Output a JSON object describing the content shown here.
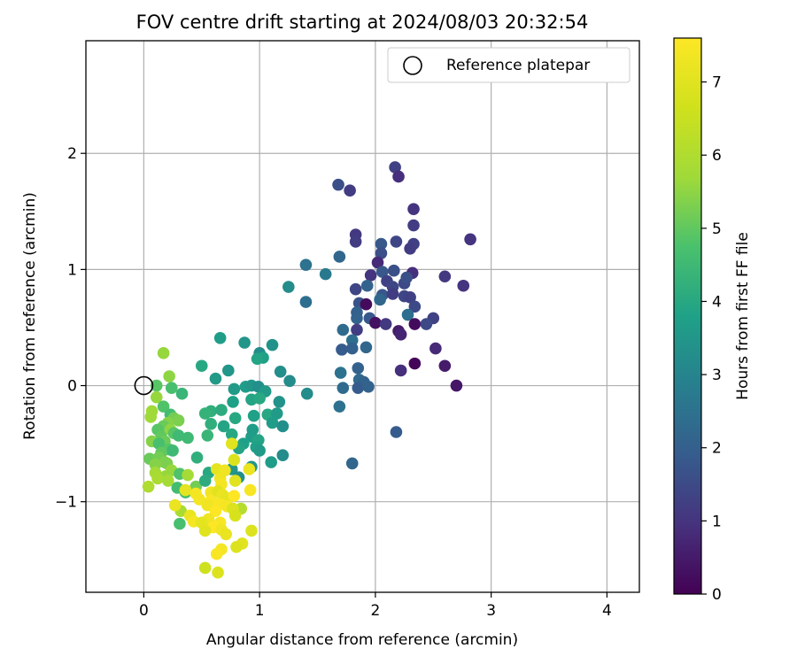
{
  "chart_data": {
    "type": "scatter",
    "title": "FOV centre drift starting at 2024/08/03 20:32:54",
    "xlabel": "Angular distance from reference (arcmin)",
    "ylabel": "Rotation from reference (arcmin)",
    "xlim": [
      -0.5,
      4.28
    ],
    "ylim": [
      -1.78,
      2.97
    ],
    "xticks": [
      0,
      1,
      2,
      3,
      4
    ],
    "yticks": [
      -1,
      0,
      1,
      2
    ],
    "xtick_labels": [
      "0",
      "1",
      "2",
      "3",
      "4"
    ],
    "ytick_labels": [
      "−1",
      "0",
      "1",
      "2"
    ],
    "grid": true,
    "legend": {
      "placement": "upper right",
      "entries": [
        "Reference platepar"
      ]
    },
    "colorbar": {
      "label": "Hours from first FF file",
      "colormap": "viridis",
      "range": [
        0,
        7.6
      ],
      "ticks": [
        0,
        1,
        2,
        3,
        4,
        5,
        6,
        7
      ],
      "tick_labels": [
        "0",
        "1",
        "2",
        "3",
        "4",
        "5",
        "6",
        "7"
      ]
    },
    "reference_point": {
      "name": "Reference platepar",
      "x": 0,
      "y": 0
    },
    "points": [
      {
        "x": 2.17,
        "y": 1.88,
        "c": 1.3
      },
      {
        "x": 2.2,
        "y": 1.8,
        "c": 0.9
      },
      {
        "x": 1.68,
        "y": 1.73,
        "c": 1.6
      },
      {
        "x": 1.78,
        "y": 1.68,
        "c": 1.2
      },
      {
        "x": 2.33,
        "y": 1.52,
        "c": 1.0
      },
      {
        "x": 2.33,
        "y": 1.38,
        "c": 1.2
      },
      {
        "x": 1.83,
        "y": 1.3,
        "c": 1.1
      },
      {
        "x": 2.33,
        "y": 1.22,
        "c": 1.3
      },
      {
        "x": 1.83,
        "y": 1.24,
        "c": 1.2
      },
      {
        "x": 2.05,
        "y": 1.22,
        "c": 1.8
      },
      {
        "x": 2.18,
        "y": 1.24,
        "c": 1.4
      },
      {
        "x": 2.3,
        "y": 1.18,
        "c": 1.2
      },
      {
        "x": 2.82,
        "y": 1.26,
        "c": 1.0
      },
      {
        "x": 2.05,
        "y": 1.14,
        "c": 1.6
      },
      {
        "x": 1.69,
        "y": 1.11,
        "c": 2.2
      },
      {
        "x": 1.4,
        "y": 1.04,
        "c": 2.5
      },
      {
        "x": 2.02,
        "y": 1.06,
        "c": 0.8
      },
      {
        "x": 1.57,
        "y": 0.96,
        "c": 2.7
      },
      {
        "x": 2.06,
        "y": 0.98,
        "c": 1.8
      },
      {
        "x": 2.16,
        "y": 0.99,
        "c": 1.6
      },
      {
        "x": 2.32,
        "y": 0.97,
        "c": 0.9
      },
      {
        "x": 2.6,
        "y": 0.94,
        "c": 1.1
      },
      {
        "x": 1.96,
        "y": 0.95,
        "c": 1.0
      },
      {
        "x": 2.1,
        "y": 0.9,
        "c": 1.3
      },
      {
        "x": 2.15,
        "y": 0.85,
        "c": 1.4
      },
      {
        "x": 2.25,
        "y": 0.88,
        "c": 1.5
      },
      {
        "x": 1.25,
        "y": 0.85,
        "c": 3.2
      },
      {
        "x": 1.83,
        "y": 0.83,
        "c": 1.4
      },
      {
        "x": 1.93,
        "y": 0.86,
        "c": 2.1
      },
      {
        "x": 2.27,
        "y": 0.93,
        "c": 1.6
      },
      {
        "x": 2.76,
        "y": 0.86,
        "c": 1.0
      },
      {
        "x": 2.06,
        "y": 0.78,
        "c": 1.8
      },
      {
        "x": 2.15,
        "y": 0.79,
        "c": 1.2
      },
      {
        "x": 2.25,
        "y": 0.77,
        "c": 1.4
      },
      {
        "x": 2.3,
        "y": 0.76,
        "c": 1.3
      },
      {
        "x": 1.4,
        "y": 0.72,
        "c": 2.4
      },
      {
        "x": 1.86,
        "y": 0.71,
        "c": 1.7
      },
      {
        "x": 1.92,
        "y": 0.7,
        "c": 0.2
      },
      {
        "x": 2.04,
        "y": 0.74,
        "c": 2.2
      },
      {
        "x": 2.34,
        "y": 0.68,
        "c": 1.5
      },
      {
        "x": 1.84,
        "y": 0.63,
        "c": 2.0
      },
      {
        "x": 1.95,
        "y": 0.58,
        "c": 1.8
      },
      {
        "x": 2.28,
        "y": 0.61,
        "c": 2.4
      },
      {
        "x": 2.5,
        "y": 0.58,
        "c": 1.3
      },
      {
        "x": 1.84,
        "y": 0.58,
        "c": 2.1
      },
      {
        "x": 2.0,
        "y": 0.54,
        "c": 0.3
      },
      {
        "x": 2.09,
        "y": 0.53,
        "c": 1.1
      },
      {
        "x": 2.34,
        "y": 0.53,
        "c": 0.2
      },
      {
        "x": 2.44,
        "y": 0.53,
        "c": 1.5
      },
      {
        "x": 1.84,
        "y": 0.48,
        "c": 1.2
      },
      {
        "x": 1.72,
        "y": 0.48,
        "c": 2.3
      },
      {
        "x": 2.2,
        "y": 0.47,
        "c": 0.5
      },
      {
        "x": 2.22,
        "y": 0.44,
        "c": 0.7
      },
      {
        "x": 1.8,
        "y": 0.39,
        "c": 2.4
      },
      {
        "x": 1.71,
        "y": 0.31,
        "c": 1.9
      },
      {
        "x": 1.92,
        "y": 0.33,
        "c": 2.2
      },
      {
        "x": 1.8,
        "y": 0.32,
        "c": 2.0
      },
      {
        "x": 2.52,
        "y": 0.32,
        "c": 0.8
      },
      {
        "x": 1.85,
        "y": 0.15,
        "c": 2.1
      },
      {
        "x": 2.22,
        "y": 0.13,
        "c": 0.9
      },
      {
        "x": 2.34,
        "y": 0.19,
        "c": 0.1
      },
      {
        "x": 2.6,
        "y": 0.17,
        "c": 0.5
      },
      {
        "x": 1.7,
        "y": 0.11,
        "c": 2.5
      },
      {
        "x": 1.86,
        "y": 0.05,
        "c": 2.3
      },
      {
        "x": 1.9,
        "y": 0.03,
        "c": 2.1
      },
      {
        "x": 1.85,
        "y": -0.02,
        "c": 1.9
      },
      {
        "x": 1.72,
        "y": -0.02,
        "c": 2.3
      },
      {
        "x": 1.94,
        "y": -0.01,
        "c": 2.1
      },
      {
        "x": 2.7,
        "y": 0.0,
        "c": 0.4
      },
      {
        "x": 1.69,
        "y": -0.18,
        "c": 2.5
      },
      {
        "x": 2.18,
        "y": -0.4,
        "c": 1.9
      },
      {
        "x": 1.8,
        "y": -0.67,
        "c": 2.2
      },
      {
        "x": 0.66,
        "y": 0.41,
        "c": 3.7
      },
      {
        "x": 0.87,
        "y": 0.37,
        "c": 3.5
      },
      {
        "x": 1.11,
        "y": 0.35,
        "c": 3.4
      },
      {
        "x": 1.0,
        "y": 0.28,
        "c": 3.2
      },
      {
        "x": 1.03,
        "y": 0.24,
        "c": 3.8
      },
      {
        "x": 0.98,
        "y": 0.23,
        "c": 3.9
      },
      {
        "x": 0.5,
        "y": 0.17,
        "c": 4.0
      },
      {
        "x": 0.73,
        "y": 0.13,
        "c": 3.5
      },
      {
        "x": 1.18,
        "y": 0.12,
        "c": 3.3
      },
      {
        "x": 0.62,
        "y": 0.06,
        "c": 3.6
      },
      {
        "x": 1.26,
        "y": 0.04,
        "c": 3.2
      },
      {
        "x": 0.78,
        "y": -0.03,
        "c": 3.6
      },
      {
        "x": 0.88,
        "y": -0.01,
        "c": 3.7
      },
      {
        "x": 0.93,
        "y": 0.0,
        "c": 3.5
      },
      {
        "x": 0.99,
        "y": -0.01,
        "c": 3.3
      },
      {
        "x": 1.05,
        "y": -0.05,
        "c": 3.6
      },
      {
        "x": 1.41,
        "y": -0.07,
        "c": 3.2
      },
      {
        "x": 0.33,
        "y": -0.07,
        "c": 4.4
      },
      {
        "x": 0.77,
        "y": -0.14,
        "c": 3.8
      },
      {
        "x": 0.93,
        "y": -0.12,
        "c": 3.9
      },
      {
        "x": 1.0,
        "y": -0.11,
        "c": 4.0
      },
      {
        "x": 1.17,
        "y": -0.14,
        "c": 3.4
      },
      {
        "x": 0.58,
        "y": -0.22,
        "c": 4.2
      },
      {
        "x": 0.67,
        "y": -0.21,
        "c": 4.1
      },
      {
        "x": 0.53,
        "y": -0.24,
        "c": 4.3
      },
      {
        "x": 0.95,
        "y": -0.26,
        "c": 3.8
      },
      {
        "x": 1.07,
        "y": -0.25,
        "c": 4.0
      },
      {
        "x": 1.15,
        "y": -0.24,
        "c": 3.6
      },
      {
        "x": 0.79,
        "y": -0.28,
        "c": 4.0
      },
      {
        "x": 0.58,
        "y": -0.33,
        "c": 4.2
      },
      {
        "x": 0.69,
        "y": -0.35,
        "c": 3.9
      },
      {
        "x": 1.11,
        "y": -0.32,
        "c": 3.7
      },
      {
        "x": 1.2,
        "y": -0.35,
        "c": 3.3
      },
      {
        "x": 0.94,
        "y": -0.38,
        "c": 3.7
      },
      {
        "x": 0.38,
        "y": -0.45,
        "c": 4.5
      },
      {
        "x": 0.55,
        "y": -0.43,
        "c": 4.4
      },
      {
        "x": 0.76,
        "y": -0.42,
        "c": 4.0
      },
      {
        "x": 0.93,
        "y": -0.44,
        "c": 3.7
      },
      {
        "x": 0.99,
        "y": -0.47,
        "c": 3.9
      },
      {
        "x": 0.86,
        "y": -0.5,
        "c": 3.8
      },
      {
        "x": 0.97,
        "y": -0.53,
        "c": 3.8
      },
      {
        "x": 1.0,
        "y": -0.56,
        "c": 3.6
      },
      {
        "x": 0.82,
        "y": -0.54,
        "c": 3.9
      },
      {
        "x": 1.2,
        "y": -0.6,
        "c": 3.2
      },
      {
        "x": 0.46,
        "y": -0.62,
        "c": 4.2
      },
      {
        "x": 1.1,
        "y": -0.66,
        "c": 3.7
      },
      {
        "x": 0.93,
        "y": -0.7,
        "c": 3.5
      },
      {
        "x": 0.76,
        "y": -0.72,
        "c": 3.5
      },
      {
        "x": 0.56,
        "y": -0.75,
        "c": 4.0
      },
      {
        "x": 0.82,
        "y": -0.79,
        "c": 3.3
      },
      {
        "x": 0.17,
        "y": 0.28,
        "c": 5.6
      },
      {
        "x": 0.22,
        "y": 0.08,
        "c": 5.5
      },
      {
        "x": 0.11,
        "y": 0.0,
        "c": 4.9
      },
      {
        "x": 0.24,
        "y": -0.02,
        "c": 4.7
      },
      {
        "x": 0.11,
        "y": -0.1,
        "c": 5.6
      },
      {
        "x": 0.17,
        "y": -0.18,
        "c": 4.8
      },
      {
        "x": 0.23,
        "y": -0.25,
        "c": 4.6
      },
      {
        "x": 0.07,
        "y": -0.22,
        "c": 5.7
      },
      {
        "x": 0.06,
        "y": -0.27,
        "c": 5.7
      },
      {
        "x": 0.26,
        "y": -0.28,
        "c": 5.2
      },
      {
        "x": 0.3,
        "y": -0.3,
        "c": 5.3
      },
      {
        "x": 0.21,
        "y": -0.32,
        "c": 5.4
      },
      {
        "x": 0.17,
        "y": -0.35,
        "c": 5.1
      },
      {
        "x": 0.23,
        "y": -0.38,
        "c": 5.5
      },
      {
        "x": 0.12,
        "y": -0.38,
        "c": 4.9
      },
      {
        "x": 0.26,
        "y": -0.41,
        "c": 4.9
      },
      {
        "x": 0.15,
        "y": -0.44,
        "c": 5.0
      },
      {
        "x": 0.3,
        "y": -0.43,
        "c": 4.5
      },
      {
        "x": 0.07,
        "y": -0.48,
        "c": 5.4
      },
      {
        "x": 0.18,
        "y": -0.48,
        "c": 5.1
      },
      {
        "x": 0.13,
        "y": -0.5,
        "c": 4.7
      },
      {
        "x": 0.22,
        "y": -0.55,
        "c": 4.9
      },
      {
        "x": 0.25,
        "y": -0.56,
        "c": 4.5
      },
      {
        "x": 0.15,
        "y": -0.58,
        "c": 5.0
      },
      {
        "x": 0.05,
        "y": -0.63,
        "c": 5.1
      },
      {
        "x": 0.13,
        "y": -0.62,
        "c": 5.2
      },
      {
        "x": 0.18,
        "y": -0.66,
        "c": 5.3
      },
      {
        "x": 0.2,
        "y": -0.67,
        "c": 5.3
      },
      {
        "x": 0.1,
        "y": -0.68,
        "c": 5.4
      },
      {
        "x": 0.24,
        "y": -0.73,
        "c": 5.6
      },
      {
        "x": 0.1,
        "y": -0.75,
        "c": 5.8
      },
      {
        "x": 0.31,
        "y": -0.76,
        "c": 4.8
      },
      {
        "x": 0.19,
        "y": -0.78,
        "c": 5.6
      },
      {
        "x": 0.38,
        "y": -0.77,
        "c": 5.8
      },
      {
        "x": 0.12,
        "y": -0.8,
        "c": 5.9
      },
      {
        "x": 0.21,
        "y": -0.82,
        "c": 5.8
      },
      {
        "x": 0.04,
        "y": -0.87,
        "c": 6.0
      },
      {
        "x": 0.29,
        "y": -0.88,
        "c": 4.6
      },
      {
        "x": 0.45,
        "y": -0.87,
        "c": 5.2
      },
      {
        "x": 0.53,
        "y": -0.82,
        "c": 4.1
      },
      {
        "x": 0.36,
        "y": -0.92,
        "c": 4.7
      },
      {
        "x": 0.32,
        "y": -1.08,
        "c": 5.9
      },
      {
        "x": 0.31,
        "y": -1.19,
        "c": 4.7
      },
      {
        "x": 0.59,
        "y": -1.0,
        "c": 6.4
      },
      {
        "x": 0.84,
        "y": -1.06,
        "c": 6.1
      },
      {
        "x": 0.63,
        "y": -0.72,
        "c": 7.1
      },
      {
        "x": 0.7,
        "y": -0.73,
        "c": 7.3
      },
      {
        "x": 0.78,
        "y": -0.64,
        "c": 6.9
      },
      {
        "x": 0.91,
        "y": -0.72,
        "c": 7.2
      },
      {
        "x": 0.76,
        "y": -0.5,
        "c": 7.0
      },
      {
        "x": 0.66,
        "y": -0.8,
        "c": 7.3
      },
      {
        "x": 0.67,
        "y": -0.85,
        "c": 7.4
      },
      {
        "x": 0.79,
        "y": -0.82,
        "c": 7.0
      },
      {
        "x": 0.92,
        "y": -0.9,
        "c": 7.5
      },
      {
        "x": 0.36,
        "y": -0.9,
        "c": 7.1
      },
      {
        "x": 0.45,
        "y": -0.93,
        "c": 7.4
      },
      {
        "x": 0.58,
        "y": -0.92,
        "c": 7.3
      },
      {
        "x": 0.64,
        "y": -0.91,
        "c": 7.0
      },
      {
        "x": 0.68,
        "y": -0.94,
        "c": 7.2
      },
      {
        "x": 0.48,
        "y": -0.98,
        "c": 7.4
      },
      {
        "x": 0.58,
        "y": -0.99,
        "c": 7.5
      },
      {
        "x": 0.72,
        "y": -0.97,
        "c": 7.1
      },
      {
        "x": 0.78,
        "y": -0.95,
        "c": 7.6
      },
      {
        "x": 0.27,
        "y": -1.03,
        "c": 7.2
      },
      {
        "x": 0.55,
        "y": -1.03,
        "c": 7.3
      },
      {
        "x": 0.66,
        "y": -1.02,
        "c": 7.5
      },
      {
        "x": 0.72,
        "y": -1.04,
        "c": 7.4
      },
      {
        "x": 0.77,
        "y": -1.06,
        "c": 6.9
      },
      {
        "x": 0.62,
        "y": -1.08,
        "c": 7.6
      },
      {
        "x": 0.4,
        "y": -1.12,
        "c": 7.2
      },
      {
        "x": 0.79,
        "y": -1.12,
        "c": 6.8
      },
      {
        "x": 0.56,
        "y": -1.15,
        "c": 7.3
      },
      {
        "x": 0.43,
        "y": -1.17,
        "c": 7.4
      },
      {
        "x": 0.5,
        "y": -1.18,
        "c": 7.1
      },
      {
        "x": 0.66,
        "y": -1.18,
        "c": 7.5
      },
      {
        "x": 0.6,
        "y": -1.22,
        "c": 7.6
      },
      {
        "x": 0.67,
        "y": -1.24,
        "c": 7.3
      },
      {
        "x": 0.53,
        "y": -1.25,
        "c": 7.0
      },
      {
        "x": 0.93,
        "y": -1.25,
        "c": 6.9
      },
      {
        "x": 0.71,
        "y": -1.28,
        "c": 7.2
      },
      {
        "x": 0.85,
        "y": -1.36,
        "c": 7.0
      },
      {
        "x": 0.8,
        "y": -1.39,
        "c": 6.9
      },
      {
        "x": 0.67,
        "y": -1.41,
        "c": 7.4
      },
      {
        "x": 0.63,
        "y": -1.45,
        "c": 7.5
      },
      {
        "x": 0.53,
        "y": -1.57,
        "c": 6.6
      },
      {
        "x": 0.64,
        "y": -1.61,
        "c": 6.9
      }
    ]
  }
}
